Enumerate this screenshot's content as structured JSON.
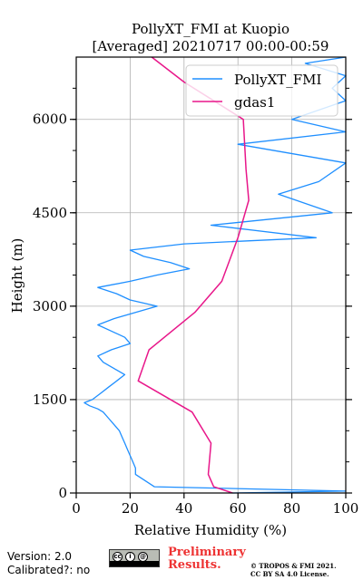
{
  "chart_data": {
    "type": "line",
    "title_line1": "PollyXT_FMI at Kuopio",
    "title_line2": "[Averaged] 20210717 00:00-00:59",
    "xlabel": "Relative Humidity (%)",
    "ylabel": "Height (m)",
    "xlim": [
      0,
      100
    ],
    "ylim": [
      0,
      7000
    ],
    "xticks": [
      "0",
      "20",
      "40",
      "60",
      "80",
      "100"
    ],
    "yticks": [
      "0",
      "1500",
      "3000",
      "4500",
      "6000"
    ],
    "grid": true,
    "legend_position": "top-right",
    "series": [
      {
        "name": "PollyXT_FMI",
        "color": "#1f8fff",
        "x": [
          58,
          100,
          29,
          22,
          22,
          21,
          20,
          19,
          18,
          17,
          16,
          14,
          12,
          10,
          8,
          5,
          3,
          6,
          9,
          12,
          15,
          18,
          14,
          10,
          8,
          13,
          20,
          18,
          13,
          8,
          14,
          22,
          30,
          20,
          15,
          8,
          20,
          30,
          42,
          35,
          25,
          20,
          40,
          89,
          50,
          95,
          75,
          90,
          100,
          60,
          100,
          80,
          100,
          95,
          100,
          85,
          100
        ],
        "y": [
          0,
          30,
          100,
          300,
          400,
          500,
          600,
          700,
          800,
          900,
          1000,
          1100,
          1200,
          1300,
          1350,
          1400,
          1450,
          1500,
          1600,
          1700,
          1800,
          1900,
          2000,
          2100,
          2200,
          2300,
          2400,
          2500,
          2600,
          2700,
          2800,
          2900,
          3000,
          3100,
          3200,
          3300,
          3400,
          3500,
          3600,
          3700,
          3800,
          3900,
          4000,
          4100,
          4300,
          4500,
          4800,
          5000,
          5300,
          5600,
          5800,
          6000,
          6300,
          6500,
          6700,
          6900,
          7000
        ]
      },
      {
        "name": "gdas1",
        "color": "#e8178a",
        "x": [
          58,
          51,
          49,
          50,
          43,
          23,
          27,
          44,
          54,
          60,
          64,
          63,
          62,
          40,
          28
        ],
        "y": [
          0,
          100,
          300,
          800,
          1300,
          1800,
          2300,
          2900,
          3400,
          4100,
          4700,
          5200,
          6000,
          6600,
          7000
        ]
      }
    ]
  },
  "footer": {
    "version": "Version: 2.0",
    "calibrated": "Calibrated?: no",
    "license_badge": "cc-by-sa-badge",
    "preliminary_line1": "Preliminary",
    "preliminary_line2": "Results.",
    "copyright_line1": "© TROPOS & FMI 2021.",
    "copyright_line2": "CC BY SA 4.0 License."
  }
}
